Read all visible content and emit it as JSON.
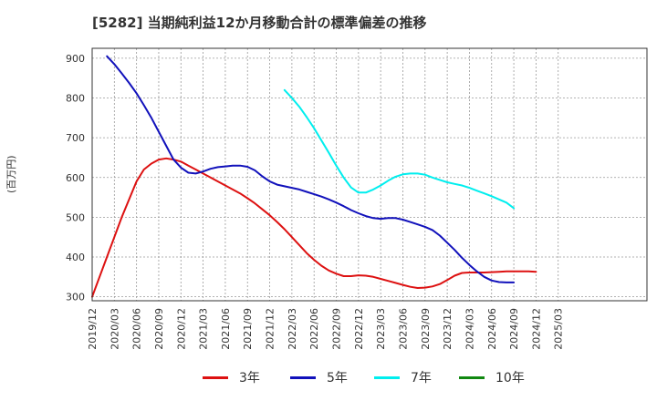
{
  "title": "[5282]  当期純利益12か月移動合計の標準偏差の推移",
  "unit_label": "(百万円)",
  "chart_data": {
    "type": "line",
    "title": "[5282]  当期純利益12か月移動合計の標準偏差の推移",
    "ylabel": "(百万円)",
    "ylim": [
      290,
      925
    ],
    "yticks": [
      300,
      400,
      500,
      600,
      700,
      800,
      900
    ],
    "x_range": [
      0,
      75
    ],
    "x_ticks": [
      {
        "i": 0,
        "label": "2019/12"
      },
      {
        "i": 3,
        "label": "2020/03"
      },
      {
        "i": 6,
        "label": "2020/06"
      },
      {
        "i": 9,
        "label": "2020/09"
      },
      {
        "i": 12,
        "label": "2020/12"
      },
      {
        "i": 15,
        "label": "2021/03"
      },
      {
        "i": 18,
        "label": "2021/06"
      },
      {
        "i": 21,
        "label": "2021/09"
      },
      {
        "i": 24,
        "label": "2021/12"
      },
      {
        "i": 27,
        "label": "2022/03"
      },
      {
        "i": 30,
        "label": "2022/06"
      },
      {
        "i": 33,
        "label": "2022/09"
      },
      {
        "i": 36,
        "label": "2022/12"
      },
      {
        "i": 39,
        "label": "2023/03"
      },
      {
        "i": 42,
        "label": "2023/06"
      },
      {
        "i": 45,
        "label": "2023/09"
      },
      {
        "i": 48,
        "label": "2023/12"
      },
      {
        "i": 51,
        "label": "2024/03"
      },
      {
        "i": 54,
        "label": "2024/06"
      },
      {
        "i": 57,
        "label": "2024/09"
      },
      {
        "i": 60,
        "label": "2024/12"
      },
      {
        "i": 63,
        "label": "2025/03"
      }
    ],
    "grid": true,
    "legend_position": "bottom",
    "series": [
      {
        "name": "3年",
        "color": "#dd1111",
        "start_index": 0,
        "values": [
          300,
          350,
          400,
          450,
          500,
          545,
          590,
          620,
          635,
          645,
          648,
          645,
          640,
          630,
          620,
          610,
          600,
          590,
          580,
          570,
          560,
          548,
          535,
          520,
          505,
          488,
          470,
          450,
          430,
          410,
          393,
          378,
          366,
          358,
          352,
          352,
          354,
          353,
          350,
          345,
          340,
          335,
          330,
          325,
          322,
          323,
          326,
          332,
          342,
          353,
          360,
          361,
          361,
          361,
          362,
          363,
          364,
          364,
          364,
          364,
          363
        ]
      },
      {
        "name": "5年",
        "color": "#1111bb",
        "start_index": 2,
        "values": [
          905,
          885,
          862,
          838,
          812,
          782,
          750,
          715,
          680,
          645,
          625,
          612,
          610,
          615,
          622,
          626,
          628,
          630,
          630,
          627,
          618,
          603,
          590,
          582,
          578,
          574,
          570,
          564,
          558,
          552,
          545,
          537,
          528,
          518,
          510,
          503,
          498,
          496,
          498,
          498,
          494,
          488,
          482,
          476,
          468,
          454,
          436,
          418,
          398,
          380,
          364,
          350,
          341,
          337,
          336,
          336
        ]
      },
      {
        "name": "7年",
        "color": "#00eeee",
        "start_index": 26,
        "values": [
          820,
          800,
          778,
          752,
          724,
          693,
          662,
          630,
          600,
          575,
          562,
          562,
          570,
          580,
          592,
          602,
          608,
          610,
          610,
          607,
          600,
          594,
          588,
          584,
          580,
          574,
          567,
          560,
          553,
          545,
          537,
          523
        ]
      },
      {
        "name": "10年",
        "color": "#118811",
        "start_index": 0,
        "values": []
      }
    ]
  }
}
